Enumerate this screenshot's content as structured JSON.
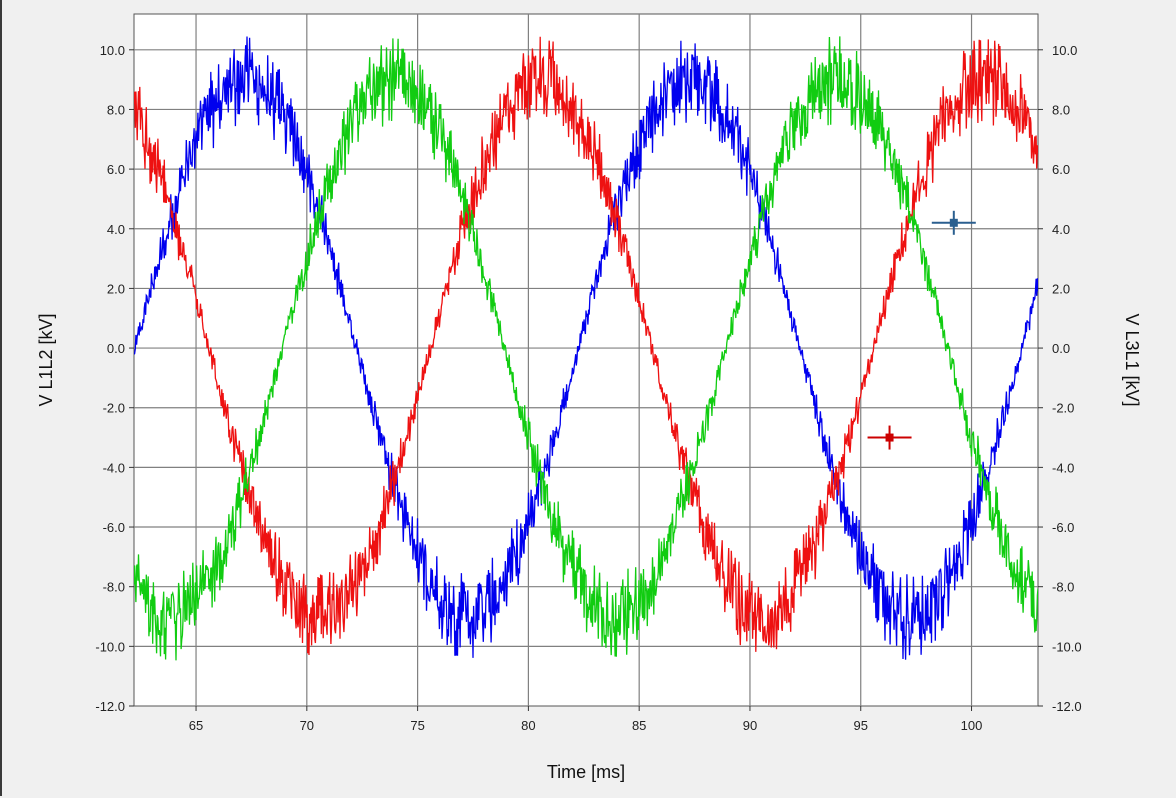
{
  "chart_data": {
    "type": "line",
    "xlabel": "Time [ms]",
    "ylabel_left": "V L1L2 [kV]",
    "ylabel_right": "V L3L1 [kV]",
    "xlim": [
      62.2,
      103
    ],
    "ylim": [
      -12,
      11.2
    ],
    "xticks": [
      65,
      70,
      75,
      80,
      85,
      90,
      95,
      100
    ],
    "yticks": [
      -12,
      -10,
      -8,
      -6,
      -4,
      -2,
      0,
      2,
      4,
      6,
      8,
      10
    ],
    "ytick_labels": [
      "-12.0",
      "-10.0",
      "-8.0",
      "-6.0",
      "-4.0",
      "-2.0",
      "0.0",
      "2.0",
      "4.0",
      "6.0",
      "8.0",
      "10.0"
    ],
    "grid": true,
    "series": [
      {
        "color": "#0000ee",
        "amplitude_kv": 9.0,
        "zero_crossing_rising_ms": 82.25,
        "period_ms": 20,
        "noise_kv": 1.3
      },
      {
        "color": "#ee1111",
        "amplitude_kv": 9.0,
        "zero_crossing_rising_ms": 82.25,
        "period_ms": 20,
        "noise_kv": 1.3,
        "phase_shift_ms": -6.67
      },
      {
        "color": "#11cc11",
        "amplitude_kv": 9.0,
        "zero_crossing_rising_ms": 82.25,
        "period_ms": 20,
        "noise_kv": 1.3,
        "phase_shift_ms": 6.67
      }
    ],
    "cursors": [
      {
        "x": 99.2,
        "y": 4.2,
        "color": "#2a5f8f"
      },
      {
        "x": 96.3,
        "y": -3.0,
        "color": "#cc0000"
      }
    ]
  }
}
